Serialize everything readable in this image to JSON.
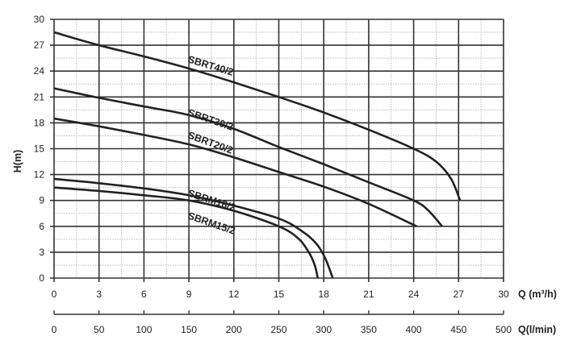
{
  "chart_data": {
    "type": "line",
    "xlabel": "Q (m³/h)",
    "xlabel2": "Q(l/min)",
    "ylabel": "H(m)",
    "xlim": [
      0,
      30
    ],
    "ylim": [
      0,
      30
    ],
    "grid": true,
    "x_ticks": [
      "0",
      "3",
      "6",
      "9",
      "12",
      "15",
      "18",
      "21",
      "24",
      "27",
      "30"
    ],
    "y_ticks": [
      "0",
      "3",
      "6",
      "9",
      "12",
      "15",
      "18",
      "21",
      "24",
      "27",
      "30"
    ],
    "x2_ticks": [
      "0",
      "50",
      "100",
      "150",
      "200",
      "250",
      "300",
      "350",
      "400",
      "450",
      "500"
    ],
    "series": [
      {
        "name": "SBRT40/2",
        "x": [
          0,
          3,
          6,
          9,
          12,
          15,
          18,
          21,
          24,
          25.5,
          26.5,
          27.1
        ],
        "y": [
          28.5,
          27,
          25.7,
          24.3,
          22.7,
          21,
          19.2,
          17.2,
          15,
          13.5,
          11.5,
          9
        ]
      },
      {
        "name": "SBRT30/2",
        "x": [
          0,
          3,
          6,
          9,
          12,
          15,
          18,
          21,
          24,
          25,
          25.9
        ],
        "y": [
          22,
          20.9,
          19.9,
          18.9,
          17.3,
          15.2,
          13.2,
          11.1,
          9,
          7.8,
          6
        ]
      },
      {
        "name": "SBRT20/2",
        "x": [
          0,
          3,
          6,
          9,
          12,
          15,
          18,
          21,
          24.2
        ],
        "y": [
          18.5,
          17.6,
          16.6,
          15.5,
          14,
          12.3,
          10.6,
          8.6,
          6
        ]
      },
      {
        "name": "SBRM18/2",
        "x": [
          0,
          3,
          6,
          9,
          12,
          15,
          16.5,
          17.5,
          18.1,
          18.6
        ],
        "y": [
          11.5,
          11,
          10.4,
          9.6,
          8.4,
          6.9,
          5.5,
          4,
          2.3,
          0
        ]
      },
      {
        "name": "SBRM15/2",
        "x": [
          0,
          3,
          6,
          9,
          12,
          15,
          16.3,
          17,
          17.4,
          17.6
        ],
        "y": [
          10.5,
          10.1,
          9.6,
          9,
          7.8,
          6,
          4.6,
          3,
          1.5,
          0
        ]
      }
    ]
  }
}
